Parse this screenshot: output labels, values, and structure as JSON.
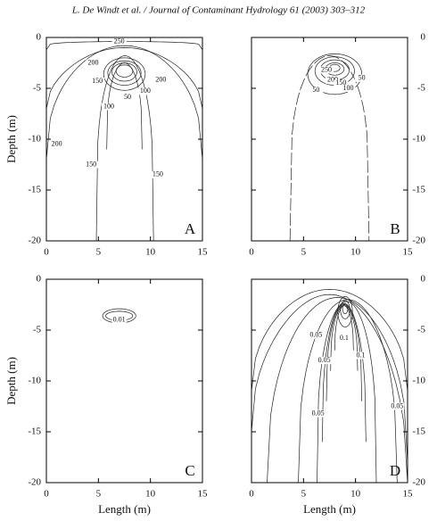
{
  "header": "L. De Windt et al. / Journal of Contaminant Hydrology 61 (2003) 303–312",
  "chart_data": [
    {
      "type": "contour",
      "panel_label": "A",
      "y_label": "Depth (m)",
      "xlim": [
        0,
        15
      ],
      "ylim": [
        -20,
        0
      ],
      "xticks": [
        0,
        5,
        10,
        15
      ],
      "yticks": [
        0,
        -5,
        -10,
        -15,
        -20
      ],
      "ytick_side": "left",
      "contour_labels": [
        250,
        200,
        150,
        100,
        50,
        100,
        200,
        200,
        150,
        150
      ]
    },
    {
      "type": "contour",
      "panel_label": "B",
      "xlim": [
        0,
        15
      ],
      "ylim": [
        -20,
        0
      ],
      "xticks": [
        0,
        5,
        10,
        15
      ],
      "yticks": [
        0,
        -5,
        -10,
        -15,
        -20
      ],
      "ytick_side": "right",
      "contour_labels": [
        250,
        200,
        150,
        100,
        50,
        50
      ]
    },
    {
      "type": "contour",
      "panel_label": "C",
      "y_label": "Depth (m)",
      "x_label": "Length (m)",
      "xlim": [
        0,
        15
      ],
      "ylim": [
        -20,
        0
      ],
      "xticks": [
        0,
        5,
        10,
        15
      ],
      "yticks": [
        0,
        -5,
        -10,
        -15,
        -20
      ],
      "ytick_side": "left",
      "contour_labels": [
        0.01
      ]
    },
    {
      "type": "contour",
      "panel_label": "D",
      "x_label": "Length (m)",
      "xlim": [
        0,
        15
      ],
      "ylim": [
        -20,
        0
      ],
      "xticks": [
        0,
        5,
        10,
        15
      ],
      "yticks": [
        0,
        -5,
        -10,
        -15,
        -20
      ],
      "ytick_side": "right",
      "contour_labels": [
        0.05,
        0.05,
        0.1,
        0.1,
        0.05,
        0.05
      ]
    }
  ]
}
